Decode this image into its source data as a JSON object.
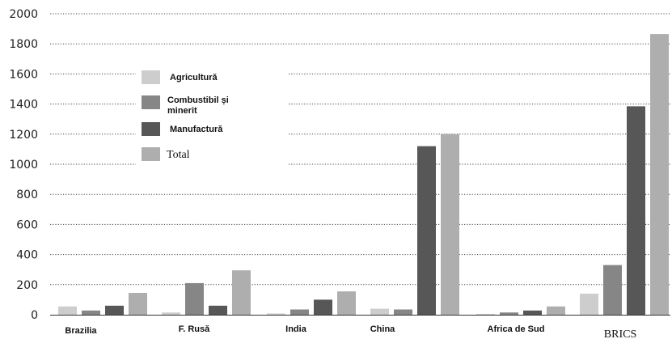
{
  "chart_data": {
    "type": "bar",
    "categories": [
      "Brazilia",
      "F. Rusă",
      "India",
      "China",
      "Africa de Sud",
      "BRICS"
    ],
    "series": [
      {
        "name": "Agricultură",
        "color": "#cdcdcd",
        "values": [
          55,
          15,
          8,
          40,
          5,
          140
        ]
      },
      {
        "name": "Combustibil și minerit",
        "color": "#868686",
        "values": [
          28,
          210,
          35,
          35,
          15,
          330
        ]
      },
      {
        "name": "Manufactură",
        "color": "#575757",
        "values": [
          60,
          60,
          100,
          1120,
          28,
          1385
        ]
      },
      {
        "name": "Total",
        "color": "#aeaeae",
        "values": [
          145,
          295,
          155,
          1200,
          55,
          1865
        ]
      }
    ],
    "y_ticks": [
      "0",
      "200",
      "400",
      "600",
      "800",
      "1000",
      "1200",
      "1400",
      "1600",
      "1800",
      "2000"
    ],
    "ylim": [
      0,
      2000
    ],
    "grid": true,
    "legend_position": "upper-left"
  }
}
